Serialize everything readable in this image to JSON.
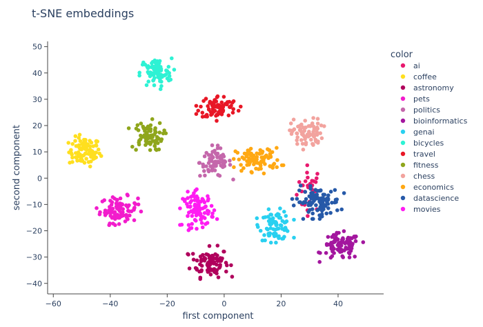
{
  "chart_data": {
    "type": "scatter",
    "title": "t-SNE embeddings",
    "xlabel": "first component",
    "ylabel": "second component",
    "xlim": [
      -62,
      56
    ],
    "ylim": [
      -44,
      52
    ],
    "xticks": [
      -60,
      -40,
      -20,
      0,
      20,
      40
    ],
    "yticks": [
      -40,
      -30,
      -20,
      -10,
      0,
      10,
      20,
      30,
      40,
      50
    ],
    "grid": false,
    "legend_title": "color",
    "legend_position": "right",
    "series": [
      {
        "name": "ai",
        "color": "#e8196e",
        "clusters": [
          {
            "cx": 30,
            "cy": -4,
            "rx": 4,
            "ry": 8,
            "n": 30
          }
        ]
      },
      {
        "name": "coffee",
        "color": "#ffdf1f",
        "clusters": [
          {
            "cx": -49,
            "cy": 10,
            "rx": 5,
            "ry": 5,
            "n": 90
          }
        ]
      },
      {
        "name": "astronomy",
        "color": "#b0005c",
        "clusters": [
          {
            "cx": -5,
            "cy": -32,
            "rx": 6,
            "ry": 5,
            "n": 90
          }
        ]
      },
      {
        "name": "pets",
        "color": "#f21ccc",
        "clusters": [
          {
            "cx": -37,
            "cy": -12,
            "rx": 6,
            "ry": 4.5,
            "n": 90
          }
        ]
      },
      {
        "name": "politics",
        "color": "#c467ab",
        "clusters": [
          {
            "cx": -3,
            "cy": 6,
            "rx": 5,
            "ry": 5,
            "n": 75
          }
        ]
      },
      {
        "name": "bioinformatics",
        "color": "#a3169e",
        "clusters": [
          {
            "cx": 41,
            "cy": -26,
            "rx": 6,
            "ry": 4.5,
            "n": 90
          }
        ]
      },
      {
        "name": "genai",
        "color": "#29d0f0",
        "clusters": [
          {
            "cx": 18,
            "cy": -18,
            "rx": 5,
            "ry": 5,
            "n": 85
          }
        ]
      },
      {
        "name": "bicycles",
        "color": "#2ef2d4",
        "clusters": [
          {
            "cx": -24,
            "cy": 40,
            "rx": 5,
            "ry": 5,
            "n": 80
          }
        ]
      },
      {
        "name": "travel",
        "color": "#e81726",
        "clusters": [
          {
            "cx": -2,
            "cy": 27,
            "rx": 6,
            "ry": 4,
            "n": 80
          }
        ]
      },
      {
        "name": "fitness",
        "color": "#8fa61c",
        "clusters": [
          {
            "cx": -27,
            "cy": 16,
            "rx": 5,
            "ry": 5,
            "n": 75
          }
        ]
      },
      {
        "name": "chess",
        "color": "#f2a39e",
        "clusters": [
          {
            "cx": 29,
            "cy": 17,
            "rx": 5,
            "ry": 5,
            "n": 80
          }
        ]
      },
      {
        "name": "economics",
        "color": "#ffa813",
        "clusters": [
          {
            "cx": 12,
            "cy": 7,
            "rx": 7,
            "ry": 4,
            "n": 90
          }
        ]
      },
      {
        "name": "datascience",
        "color": "#2659a8",
        "clusters": [
          {
            "cx": 33,
            "cy": -9,
            "rx": 7,
            "ry": 5,
            "n": 100
          }
        ]
      },
      {
        "name": "movies",
        "color": "#ff1cf2",
        "clusters": [
          {
            "cx": -9,
            "cy": -12,
            "rx": 5,
            "ry": 6,
            "n": 90
          }
        ]
      }
    ]
  }
}
